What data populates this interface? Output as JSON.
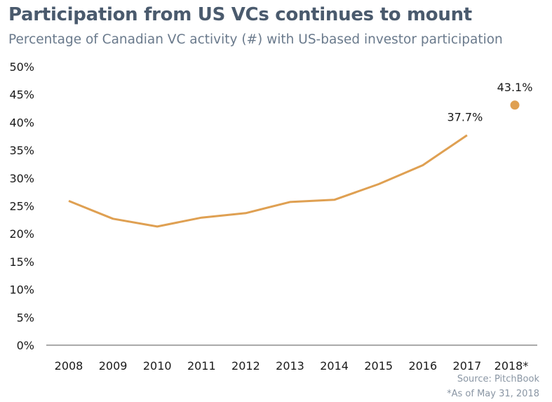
{
  "title": "Participation from US VCs continues to mount",
  "subtitle": "Percentage of Canadian VC activity (#) with US-based investor participation",
  "source": "Source: PitchBook",
  "footnote": "*As of May 31, 2018",
  "colors": {
    "line": "#dfa052",
    "axis": "#555555",
    "title": "#4a5a6d",
    "subtitle": "#6a7a8c",
    "source": "#8a96a4"
  },
  "chart_data": {
    "type": "line",
    "title": "Participation from US VCs continues to mount",
    "subtitle": "Percentage of Canadian VC activity (#) with US-based investor participation",
    "xlabel": "",
    "ylabel": "",
    "categories": [
      "2008",
      "2009",
      "2010",
      "2011",
      "2012",
      "2013",
      "2014",
      "2015",
      "2016",
      "2017",
      "2018*"
    ],
    "y_ticks": [
      "0%",
      "5%",
      "10%",
      "15%",
      "20%",
      "25%",
      "30%",
      "35%",
      "40%",
      "45%",
      "50%"
    ],
    "ylim": [
      0,
      50
    ],
    "grid": false,
    "series": [
      {
        "values": [
          25.9,
          22.7,
          21.3,
          22.9,
          23.7,
          25.7,
          26.1,
          28.9,
          32.3,
          37.7,
          null
        ],
        "style": "line"
      },
      {
        "values": [
          null,
          null,
          null,
          null,
          null,
          null,
          null,
          null,
          null,
          null,
          43.1
        ],
        "style": "point"
      }
    ],
    "data_labels": [
      {
        "category": "2017",
        "text": "37.7%"
      },
      {
        "category": "2018*",
        "text": "43.1%"
      }
    ]
  }
}
